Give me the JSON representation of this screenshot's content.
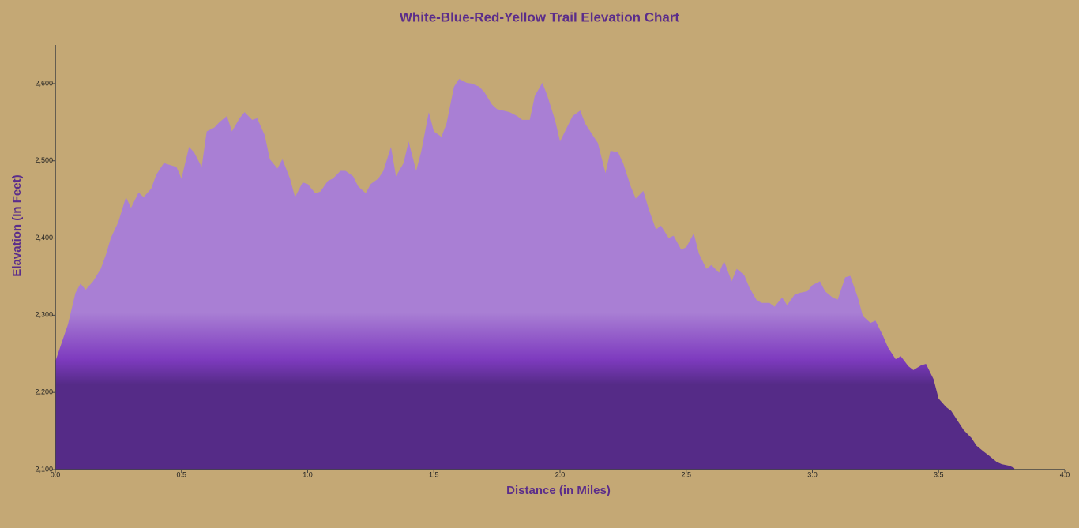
{
  "chart_data": {
    "type": "area",
    "title": "White-Blue-Red-Yellow Trail Elevation Chart",
    "x_label": "Distance (in Miles)",
    "y_label": "Elavation (In Feet)",
    "gradient_colors": [
      "#a97fd4",
      "#7e3bbf",
      "#552b87"
    ],
    "xlim": [
      0,
      4
    ],
    "ylim": [
      2100,
      2650
    ],
    "xticks": [
      {
        "value": 0,
        "label": "0.0"
      },
      0.5,
      {
        "value": 1,
        "label": "1.0"
      },
      1.5,
      {
        "value": 2,
        "label": "2.0"
      },
      2.5,
      {
        "value": 3,
        "label": "3.0"
      },
      3.5,
      {
        "value": 4,
        "label": "4.0"
      }
    ],
    "yticks": [
      {
        "value": 2100,
        "label": "2,100"
      },
      {
        "value": 2200,
        "label": "2,200"
      },
      {
        "value": 2300,
        "label": "2,300"
      },
      {
        "value": 2400,
        "label": "2,400"
      },
      {
        "value": 2500,
        "label": "2,500"
      },
      {
        "value": 2600,
        "label": "2,600"
      }
    ],
    "x": [
      0,
      0.05,
      0.08,
      0.1,
      0.12,
      0.15,
      0.18,
      0.2,
      0.22,
      0.25,
      0.28,
      0.3,
      0.33,
      0.35,
      0.38,
      0.4,
      0.43,
      0.45,
      0.48,
      0.5,
      0.53,
      0.55,
      0.58,
      0.6,
      0.63,
      0.65,
      0.68,
      0.7,
      0.73,
      0.75,
      0.78,
      0.8,
      0.83,
      0.85,
      0.88,
      0.9,
      0.93,
      0.95,
      0.98,
      1.0,
      1.03,
      1.05,
      1.08,
      1.1,
      1.13,
      1.15,
      1.18,
      1.2,
      1.23,
      1.25,
      1.28,
      1.3,
      1.33,
      1.35,
      1.38,
      1.4,
      1.43,
      1.45,
      1.48,
      1.5,
      1.53,
      1.55,
      1.58,
      1.6,
      1.63,
      1.65,
      1.68,
      1.7,
      1.73,
      1.75,
      1.8,
      1.83,
      1.85,
      1.88,
      1.9,
      1.93,
      1.95,
      1.98,
      2.0,
      2.03,
      2.05,
      2.08,
      2.1,
      2.13,
      2.15,
      2.18,
      2.2,
      2.23,
      2.25,
      2.28,
      2.3,
      2.33,
      2.35,
      2.38,
      2.4,
      2.43,
      2.45,
      2.48,
      2.5,
      2.53,
      2.55,
      2.58,
      2.6,
      2.63,
      2.65,
      2.68,
      2.7,
      2.73,
      2.75,
      2.78,
      2.8,
      2.83,
      2.85,
      2.88,
      2.9,
      2.93,
      2.95,
      2.98,
      3.0,
      3.03,
      3.05,
      3.08,
      3.1,
      3.13,
      3.15,
      3.18,
      3.2,
      3.23,
      3.25,
      3.28,
      3.3,
      3.33,
      3.35,
      3.38,
      3.4,
      3.43,
      3.45,
      3.48,
      3.5,
      3.53,
      3.55,
      3.58,
      3.6,
      3.63,
      3.65,
      3.68,
      3.7,
      3.73,
      3.75,
      3.78,
      3.8
    ],
    "values": [
      2240,
      2288,
      2329,
      2341,
      2333,
      2344,
      2360,
      2378,
      2400,
      2421,
      2453,
      2439,
      2459,
      2453,
      2464,
      2482,
      2497,
      2495,
      2492,
      2477,
      2518,
      2511,
      2492,
      2538,
      2543,
      2550,
      2558,
      2538,
      2555,
      2563,
      2553,
      2555,
      2533,
      2502,
      2490,
      2502,
      2477,
      2453,
      2472,
      2470,
      2458,
      2460,
      2474,
      2477,
      2487,
      2487,
      2480,
      2467,
      2458,
      2470,
      2477,
      2487,
      2518,
      2480,
      2497,
      2525,
      2487,
      2512,
      2563,
      2538,
      2531,
      2548,
      2596,
      2606,
      2601,
      2600,
      2596,
      2589,
      2573,
      2567,
      2563,
      2558,
      2553,
      2553,
      2584,
      2601,
      2584,
      2553,
      2525,
      2545,
      2558,
      2565,
      2548,
      2533,
      2523,
      2484,
      2513,
      2511,
      2497,
      2467,
      2451,
      2461,
      2439,
      2411,
      2416,
      2400,
      2403,
      2385,
      2388,
      2406,
      2380,
      2360,
      2365,
      2355,
      2370,
      2344,
      2360,
      2352,
      2336,
      2319,
      2316,
      2316,
      2311,
      2323,
      2313,
      2327,
      2329,
      2331,
      2339,
      2344,
      2331,
      2323,
      2320,
      2349,
      2351,
      2323,
      2299,
      2290,
      2293,
      2273,
      2258,
      2243,
      2247,
      2234,
      2229,
      2235,
      2237,
      2217,
      2192,
      2181,
      2176,
      2161,
      2151,
      2141,
      2131,
      2123,
      2118,
      2110,
      2107,
      2105,
      2102
    ]
  }
}
